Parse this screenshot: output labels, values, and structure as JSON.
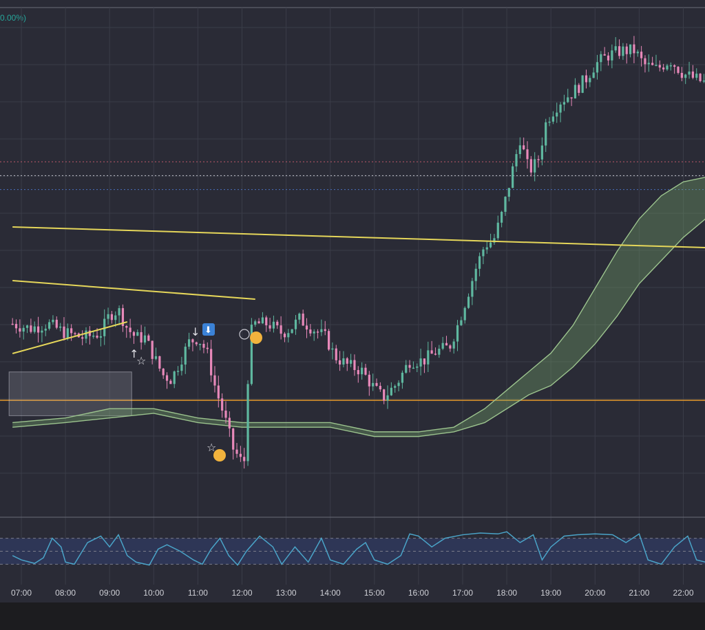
{
  "header": {
    "change_text": "0.00%)"
  },
  "colors": {
    "background": "#2a2b36",
    "page": "#1c1c1f",
    "grid": "#3a3c48",
    "bull": "#5fb8a0",
    "bear": "#e889ba",
    "trendline": "#e6d75a",
    "support": "#e89a2a",
    "ribbon": "#9cc48e",
    "stoch": "#4aa4c8",
    "stoch_fill": "#2e3656"
  },
  "icons": [
    "arrow-up-icon",
    "arrow-down-icon",
    "star-icon",
    "smile-emoji-icon",
    "grimace-emoji-icon",
    "neutral-emoji-icon",
    "down-arrow-badge-icon"
  ],
  "chart_data": {
    "type": "candlestick",
    "xlabel": "",
    "ylabel": "",
    "x_ticks": [
      "07:00",
      "08:00",
      "09:00",
      "10:00",
      "11:00",
      "12:00",
      "13:00",
      "14:00",
      "15:00",
      "16:00",
      "17:00",
      "18:00",
      "19:00",
      "20:00",
      "21:00",
      "22:00"
    ],
    "x_range_hours": [
      6.8,
      22.5
    ],
    "price_range": [
      0,
      100
    ],
    "price_path": [
      [
        6.8,
        60
      ],
      [
        7.2,
        59
      ],
      [
        7.6,
        60
      ],
      [
        8.0,
        58
      ],
      [
        8.4,
        57
      ],
      [
        8.8,
        58
      ],
      [
        9.0,
        62
      ],
      [
        9.2,
        63
      ],
      [
        9.4,
        59
      ],
      [
        9.6,
        57
      ],
      [
        9.8,
        57
      ],
      [
        10.0,
        53
      ],
      [
        10.2,
        49
      ],
      [
        10.4,
        48
      ],
      [
        10.6,
        52
      ],
      [
        10.8,
        56
      ],
      [
        11.0,
        57
      ],
      [
        11.2,
        54
      ],
      [
        11.4,
        46
      ],
      [
        11.6,
        40
      ],
      [
        11.8,
        33
      ],
      [
        12.0,
        30
      ],
      [
        12.1,
        31
      ],
      [
        12.15,
        57
      ],
      [
        12.3,
        60
      ],
      [
        12.6,
        60
      ],
      [
        12.9,
        58
      ],
      [
        13.1,
        59
      ],
      [
        13.3,
        61
      ],
      [
        13.6,
        59
      ],
      [
        13.9,
        57
      ],
      [
        14.1,
        53
      ],
      [
        14.4,
        51
      ],
      [
        14.7,
        50
      ],
      [
        15.0,
        46
      ],
      [
        15.2,
        44
      ],
      [
        15.5,
        47
      ],
      [
        15.8,
        52
      ],
      [
        16.1,
        52
      ],
      [
        16.4,
        54
      ],
      [
        16.7,
        55
      ],
      [
        16.9,
        60
      ],
      [
        17.1,
        66
      ],
      [
        17.3,
        72
      ],
      [
        17.5,
        77
      ],
      [
        17.7,
        78
      ],
      [
        17.9,
        84
      ],
      [
        18.1,
        92
      ],
      [
        18.3,
        100
      ],
      [
        18.5,
        93
      ],
      [
        18.7,
        95
      ],
      [
        18.9,
        104
      ],
      [
        19.2,
        108
      ],
      [
        19.5,
        110
      ],
      [
        19.8,
        113
      ],
      [
        20.0,
        116
      ],
      [
        20.3,
        118
      ],
      [
        20.6,
        119
      ],
      [
        20.9,
        119
      ],
      [
        21.1,
        116
      ],
      [
        21.4,
        115
      ],
      [
        21.7,
        117
      ],
      [
        22.0,
        114
      ],
      [
        22.5,
        112
      ]
    ],
    "ribbon": {
      "fast": [
        [
          6.8,
          55
        ],
        [
          8.0,
          56
        ],
        [
          9.0,
          58
        ],
        [
          10.0,
          58
        ],
        [
          11.0,
          56
        ],
        [
          12.0,
          55
        ],
        [
          13.0,
          55
        ],
        [
          14.0,
          55
        ],
        [
          15.0,
          53
        ],
        [
          16.0,
          53
        ],
        [
          16.8,
          54
        ],
        [
          17.5,
          58
        ],
        [
          18.0,
          62
        ],
        [
          18.5,
          66
        ],
        [
          19.0,
          70
        ],
        [
          19.5,
          76
        ],
        [
          20.0,
          84
        ],
        [
          20.5,
          92
        ],
        [
          21.0,
          99
        ],
        [
          21.5,
          104
        ],
        [
          22.0,
          107
        ],
        [
          22.5,
          108
        ]
      ],
      "slow": [
        [
          6.8,
          54
        ],
        [
          8.0,
          55
        ],
        [
          9.0,
          56
        ],
        [
          10.0,
          57
        ],
        [
          11.0,
          55
        ],
        [
          12.0,
          54
        ],
        [
          13.0,
          54
        ],
        [
          14.0,
          54
        ],
        [
          15.0,
          52
        ],
        [
          16.0,
          52
        ],
        [
          16.8,
          53
        ],
        [
          17.5,
          55
        ],
        [
          18.0,
          58
        ],
        [
          18.5,
          61
        ],
        [
          19.0,
          63
        ],
        [
          19.5,
          67
        ],
        [
          20.0,
          72
        ],
        [
          20.5,
          78
        ],
        [
          21.0,
          85
        ],
        [
          21.5,
          90
        ],
        [
          22.0,
          95
        ],
        [
          22.5,
          99
        ]
      ]
    },
    "trendlines": [
      {
        "x1": 6.8,
        "y1": 80,
        "x2": 22.5,
        "y2": 76
      },
      {
        "x1": 6.8,
        "y1": 64,
        "x2": 12.3,
        "y2": 61
      },
      {
        "x1": 6.8,
        "y1": 55,
        "x2": 9.4,
        "y2": 59
      }
    ],
    "horizontal_lines": [
      {
        "price": 47,
        "style": "solid",
        "color": "#e89a2a"
      },
      {
        "price": 92,
        "style": "dotted",
        "color": "#c8c8d0"
      },
      {
        "price": 95,
        "style": "dotted",
        "color": "#c05a6a"
      },
      {
        "price": 89,
        "style": "dotted",
        "color": "#4a70c0"
      }
    ],
    "range_box": {
      "x1": 6.8,
      "x2": 9.5,
      "y1": 60,
      "y2": 55
    },
    "stochastic": {
      "levels": [
        80,
        50,
        20
      ],
      "values": [
        [
          6.8,
          40
        ],
        [
          7.0,
          30
        ],
        [
          7.3,
          22
        ],
        [
          7.5,
          35
        ],
        [
          7.7,
          80
        ],
        [
          7.9,
          60
        ],
        [
          8.0,
          25
        ],
        [
          8.2,
          20
        ],
        [
          8.5,
          70
        ],
        [
          8.8,
          85
        ],
        [
          9.0,
          60
        ],
        [
          9.2,
          88
        ],
        [
          9.4,
          40
        ],
        [
          9.6,
          25
        ],
        [
          9.9,
          18
        ],
        [
          10.1,
          55
        ],
        [
          10.3,
          65
        ],
        [
          10.6,
          50
        ],
        [
          10.9,
          30
        ],
        [
          11.1,
          20
        ],
        [
          11.3,
          55
        ],
        [
          11.5,
          80
        ],
        [
          11.7,
          40
        ],
        [
          11.9,
          18
        ],
        [
          12.1,
          50
        ],
        [
          12.4,
          85
        ],
        [
          12.7,
          60
        ],
        [
          12.9,
          20
        ],
        [
          13.2,
          60
        ],
        [
          13.5,
          25
        ],
        [
          13.8,
          80
        ],
        [
          14.0,
          30
        ],
        [
          14.3,
          20
        ],
        [
          14.6,
          55
        ],
        [
          14.8,
          70
        ],
        [
          15.0,
          30
        ],
        [
          15.3,
          20
        ],
        [
          15.6,
          40
        ],
        [
          15.8,
          90
        ],
        [
          16.0,
          85
        ],
        [
          16.3,
          60
        ],
        [
          16.6,
          80
        ],
        [
          17.0,
          88
        ],
        [
          17.4,
          92
        ],
        [
          17.8,
          90
        ],
        [
          18.0,
          95
        ],
        [
          18.3,
          70
        ],
        [
          18.6,
          88
        ],
        [
          18.8,
          30
        ],
        [
          19.0,
          60
        ],
        [
          19.3,
          85
        ],
        [
          19.6,
          88
        ],
        [
          20.0,
          90
        ],
        [
          20.4,
          88
        ],
        [
          20.7,
          70
        ],
        [
          21.0,
          90
        ],
        [
          21.2,
          30
        ],
        [
          21.5,
          20
        ],
        [
          21.8,
          60
        ],
        [
          22.1,
          85
        ],
        [
          22.3,
          30
        ],
        [
          22.5,
          25
        ]
      ]
    }
  }
}
